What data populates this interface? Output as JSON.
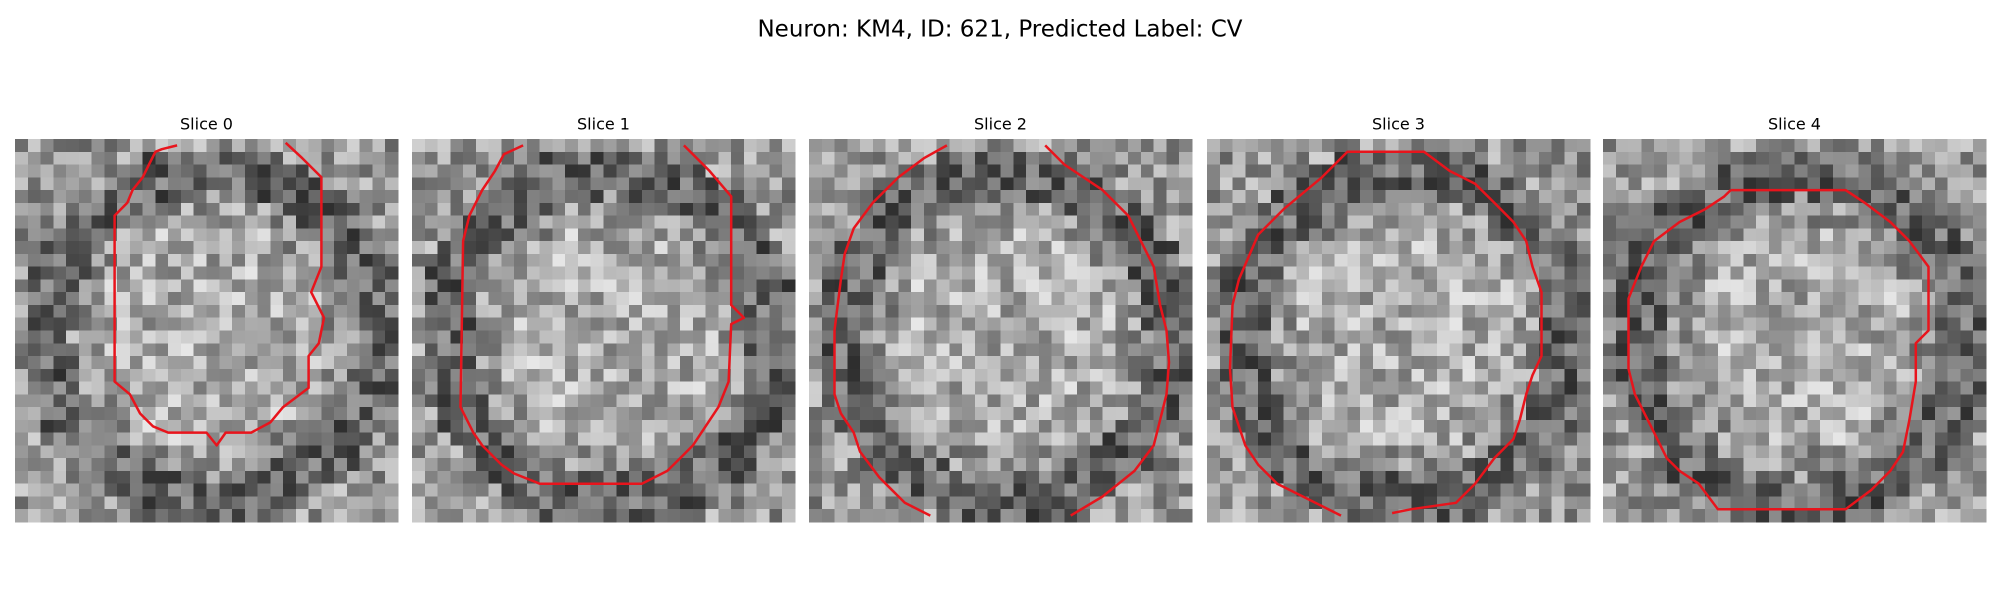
{
  "title": "Neuron: KM4, ID: 621, Predicted Label: CV",
  "panels": [
    {
      "title": "Slice 0"
    },
    {
      "title": "Slice 1"
    },
    {
      "title": "Slice 2"
    },
    {
      "title": "Slice 3"
    },
    {
      "title": "Slice 4"
    }
  ]
}
